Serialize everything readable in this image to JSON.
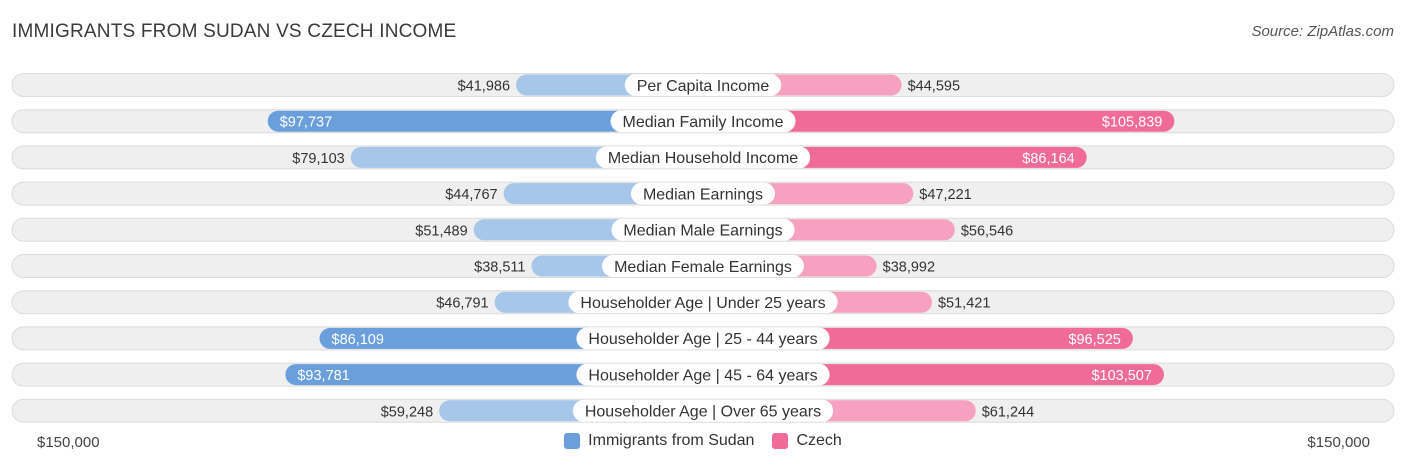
{
  "header": {
    "title": "IMMIGRANTS FROM SUDAN VS CZECH INCOME",
    "source": "Source: ZipAtlas.com"
  },
  "colors": {
    "left_strong": "#6a9fdc",
    "left_light": "#a6c6ea",
    "right_strong": "#f06b98",
    "right_light": "#f6a1bf",
    "track": "#efefef",
    "track_border": "#dcdcdc"
  },
  "legend": {
    "left_label": "Immigrants from Sudan",
    "right_label": "Czech"
  },
  "axis": {
    "left_label": "$150,000",
    "right_label": "$150,000"
  },
  "chart_data": {
    "type": "bar",
    "orientation": "horizontal-diverging",
    "title": "IMMIGRANTS FROM SUDAN VS CZECH INCOME",
    "max_value": 150000,
    "categories": [
      "Per Capita Income",
      "Median Family Income",
      "Median Household Income",
      "Median Earnings",
      "Median Male Earnings",
      "Median Female Earnings",
      "Householder Age | Under 25 years",
      "Householder Age | 25 - 44 years",
      "Householder Age | 45 - 64 years",
      "Householder Age | Over 65 years"
    ],
    "series": [
      {
        "name": "Immigrants from Sudan",
        "values": [
          41986,
          97737,
          79103,
          44767,
          51489,
          38511,
          46791,
          86109,
          93781,
          59248
        ],
        "labels": [
          "$41,986",
          "$97,737",
          "$79,103",
          "$44,767",
          "$51,489",
          "$38,511",
          "$46,791",
          "$86,109",
          "$93,781",
          "$59,248"
        ]
      },
      {
        "name": "Czech",
        "values": [
          44595,
          105839,
          86164,
          47221,
          56546,
          38992,
          51421,
          96525,
          103507,
          61244
        ],
        "labels": [
          "$44,595",
          "$105,839",
          "$86,164",
          "$47,221",
          "$56,546",
          "$38,992",
          "$51,421",
          "$96,525",
          "$103,507",
          "$61,244"
        ]
      }
    ],
    "highlight_threshold": 85000
  }
}
